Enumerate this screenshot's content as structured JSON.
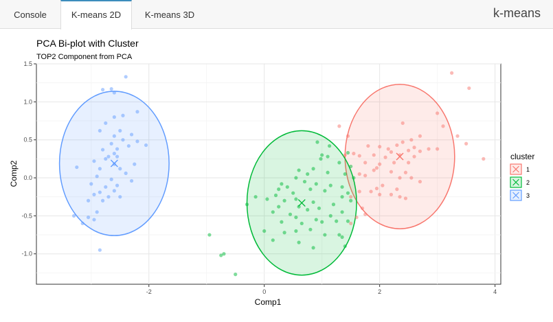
{
  "tabs": [
    {
      "label": "Console",
      "active": false
    },
    {
      "label": "K-means 2D",
      "active": true
    },
    {
      "label": "K-means 3D",
      "active": false
    }
  ],
  "app_title": "k-means",
  "chart_data": {
    "type": "scatter",
    "title": "PCA Bi-plot with Cluster",
    "subtitle": "TOP2 Component from PCA",
    "xlabel": "Comp1",
    "ylabel": "Comp2",
    "xlim": [
      -3.95,
      4.1
    ],
    "ylim": [
      -1.4,
      1.5
    ],
    "xticks": [
      -2,
      0,
      2,
      4
    ],
    "yticks": [
      -1.0,
      -0.5,
      0.0,
      0.5,
      1.0,
      1.5
    ],
    "grid": true,
    "legend": {
      "title": "cluster",
      "position": "right"
    },
    "series": [
      {
        "name": "1",
        "color": "#F8766D",
        "centroid": [
          2.35,
          0.28
        ],
        "ellipse": {
          "cx": 2.35,
          "cy": 0.28,
          "rx": 0.95,
          "ry": 0.95
        },
        "points": [
          [
            3.25,
            1.38
          ],
          [
            3.55,
            1.18
          ],
          [
            3.0,
            0.85
          ],
          [
            3.1,
            0.68
          ],
          [
            1.3,
            0.68
          ],
          [
            1.45,
            0.55
          ],
          [
            2.4,
            0.72
          ],
          [
            3.35,
            0.55
          ],
          [
            3.5,
            0.45
          ],
          [
            2.7,
            0.55
          ],
          [
            2.55,
            0.5
          ],
          [
            2.4,
            0.47
          ],
          [
            2.6,
            0.4
          ],
          [
            2.3,
            0.43
          ],
          [
            2.15,
            0.38
          ],
          [
            2.0,
            0.41
          ],
          [
            1.8,
            0.42
          ],
          [
            2.2,
            0.34
          ],
          [
            2.5,
            0.36
          ],
          [
            2.7,
            0.35
          ],
          [
            2.85,
            0.38
          ],
          [
            3.0,
            0.38
          ],
          [
            1.55,
            0.32
          ],
          [
            1.4,
            0.3
          ],
          [
            1.65,
            0.29
          ],
          [
            1.9,
            0.3
          ],
          [
            2.1,
            0.27
          ],
          [
            2.35,
            0.3
          ],
          [
            2.6,
            0.28
          ],
          [
            1.75,
            0.2
          ],
          [
            2.0,
            0.18
          ],
          [
            2.25,
            0.2
          ],
          [
            2.5,
            0.2
          ],
          [
            3.8,
            0.25
          ],
          [
            1.95,
            0.13
          ],
          [
            1.9,
            0.1
          ],
          [
            2.2,
            0.08
          ],
          [
            2.45,
            0.07
          ],
          [
            1.65,
            0.05
          ],
          [
            1.75,
            0.03
          ],
          [
            2.35,
            0.0
          ],
          [
            2.55,
            0.0
          ],
          [
            2.7,
            -0.05
          ],
          [
            2.05,
            -0.1
          ],
          [
            1.95,
            -0.14
          ],
          [
            2.3,
            -0.15
          ],
          [
            1.85,
            -0.18
          ],
          [
            2.2,
            -0.22
          ],
          [
            2.35,
            -0.25
          ],
          [
            2.0,
            -0.22
          ],
          [
            1.65,
            -0.18
          ],
          [
            1.5,
            -0.25
          ],
          [
            1.7,
            -0.4
          ],
          [
            1.6,
            -0.52
          ],
          [
            1.75,
            -0.48
          ],
          [
            1.5,
            -0.6
          ],
          [
            2.45,
            -0.27
          ]
        ]
      },
      {
        "name": "2",
        "color": "#00BA38",
        "centroid": [
          0.65,
          -0.33
        ],
        "ellipse": {
          "cx": 0.65,
          "cy": -0.33,
          "rx": 0.95,
          "ry": 0.95
        },
        "points": [
          [
            0.92,
            0.47
          ],
          [
            1.13,
            0.42
          ],
          [
            1.45,
            0.33
          ],
          [
            1.0,
            0.3
          ],
          [
            0.98,
            0.25
          ],
          [
            1.1,
            0.28
          ],
          [
            1.3,
            0.2
          ],
          [
            1.5,
            0.15
          ],
          [
            0.85,
            0.12
          ],
          [
            0.6,
            0.1
          ],
          [
            0.75,
            0.05
          ],
          [
            1.1,
            0.07
          ],
          [
            1.4,
            0.05
          ],
          [
            1.55,
            0.0
          ],
          [
            0.55,
            0.0
          ],
          [
            0.7,
            -0.05
          ],
          [
            0.3,
            -0.08
          ],
          [
            0.9,
            -0.08
          ],
          [
            1.15,
            -0.1
          ],
          [
            1.35,
            -0.12
          ],
          [
            0.4,
            -0.12
          ],
          [
            0.25,
            -0.15
          ],
          [
            0.8,
            -0.15
          ],
          [
            1.05,
            -0.17
          ],
          [
            0.5,
            -0.2
          ],
          [
            0.2,
            -0.23
          ],
          [
            1.35,
            -0.25
          ],
          [
            1.45,
            -0.2
          ],
          [
            -0.15,
            -0.25
          ],
          [
            0.05,
            -0.28
          ],
          [
            0.35,
            -0.3
          ],
          [
            0.55,
            -0.28
          ],
          [
            0.85,
            -0.32
          ],
          [
            1.5,
            -0.3
          ],
          [
            1.2,
            -0.35
          ],
          [
            -0.3,
            -0.35
          ],
          [
            0.25,
            -0.38
          ],
          [
            0.6,
            -0.38
          ],
          [
            0.75,
            -0.42
          ],
          [
            0.95,
            -0.4
          ],
          [
            0.15,
            -0.45
          ],
          [
            0.45,
            -0.48
          ],
          [
            1.35,
            -0.45
          ],
          [
            0.55,
            -0.52
          ],
          [
            0.3,
            -0.58
          ],
          [
            0.9,
            -0.55
          ],
          [
            1.25,
            -0.57
          ],
          [
            1.45,
            -0.57
          ],
          [
            0.65,
            -0.6
          ],
          [
            0.0,
            -0.7
          ],
          [
            0.35,
            -0.72
          ],
          [
            0.55,
            -0.7
          ],
          [
            0.8,
            -0.68
          ],
          [
            1.05,
            -0.75
          ],
          [
            1.3,
            -0.75
          ],
          [
            0.15,
            -0.82
          ],
          [
            0.6,
            -0.85
          ],
          [
            1.35,
            -0.78
          ],
          [
            1.4,
            -0.9
          ],
          [
            0.85,
            -0.92
          ],
          [
            -0.95,
            -0.75
          ],
          [
            -0.7,
            -1.0
          ],
          [
            -0.75,
            -1.02
          ],
          [
            -0.5,
            -1.27
          ],
          [
            1.15,
            -0.5
          ],
          [
            1.0,
            -0.58
          ]
        ]
      },
      {
        "name": "3",
        "color": "#619CFF",
        "centroid": [
          -2.6,
          0.19
        ],
        "ellipse": {
          "cx": -2.6,
          "cy": 0.19,
          "rx": 0.95,
          "ry": 0.95
        },
        "points": [
          [
            -2.4,
            1.33
          ],
          [
            -2.65,
            1.17
          ],
          [
            -2.6,
            1.12
          ],
          [
            -2.8,
            1.16
          ],
          [
            -2.2,
            0.87
          ],
          [
            -2.45,
            0.82
          ],
          [
            -2.6,
            0.8
          ],
          [
            -2.75,
            0.72
          ],
          [
            -2.85,
            0.62
          ],
          [
            -2.5,
            0.62
          ],
          [
            -2.3,
            0.57
          ],
          [
            -2.6,
            0.55
          ],
          [
            -2.45,
            0.5
          ],
          [
            -2.2,
            0.48
          ],
          [
            -2.65,
            0.45
          ],
          [
            -2.35,
            0.42
          ],
          [
            -2.05,
            0.43
          ],
          [
            -2.55,
            0.38
          ],
          [
            -2.8,
            0.37
          ],
          [
            -2.6,
            0.32
          ],
          [
            -2.7,
            0.28
          ],
          [
            -2.75,
            0.25
          ],
          [
            -2.55,
            0.28
          ],
          [
            -2.95,
            0.22
          ],
          [
            -2.6,
            0.18
          ],
          [
            -2.25,
            0.18
          ],
          [
            -2.85,
            0.12
          ],
          [
            -2.5,
            0.12
          ],
          [
            -3.25,
            0.14
          ],
          [
            -2.4,
            0.06
          ],
          [
            -2.9,
            0.02
          ],
          [
            -2.65,
            -0.02
          ],
          [
            -2.3,
            -0.04
          ],
          [
            -3.0,
            -0.08
          ],
          [
            -2.55,
            -0.1
          ],
          [
            -2.75,
            -0.12
          ],
          [
            -2.6,
            -0.17
          ],
          [
            -2.85,
            -0.19
          ],
          [
            -2.95,
            -0.22
          ],
          [
            -2.7,
            -0.25
          ],
          [
            -2.5,
            -0.25
          ],
          [
            -3.05,
            -0.3
          ],
          [
            -2.8,
            -0.3
          ],
          [
            -2.9,
            -0.45
          ],
          [
            -3.05,
            -0.52
          ],
          [
            -3.3,
            -0.5
          ],
          [
            -2.95,
            -0.55
          ],
          [
            -3.15,
            -0.6
          ],
          [
            -2.85,
            -0.95
          ]
        ]
      }
    ]
  }
}
